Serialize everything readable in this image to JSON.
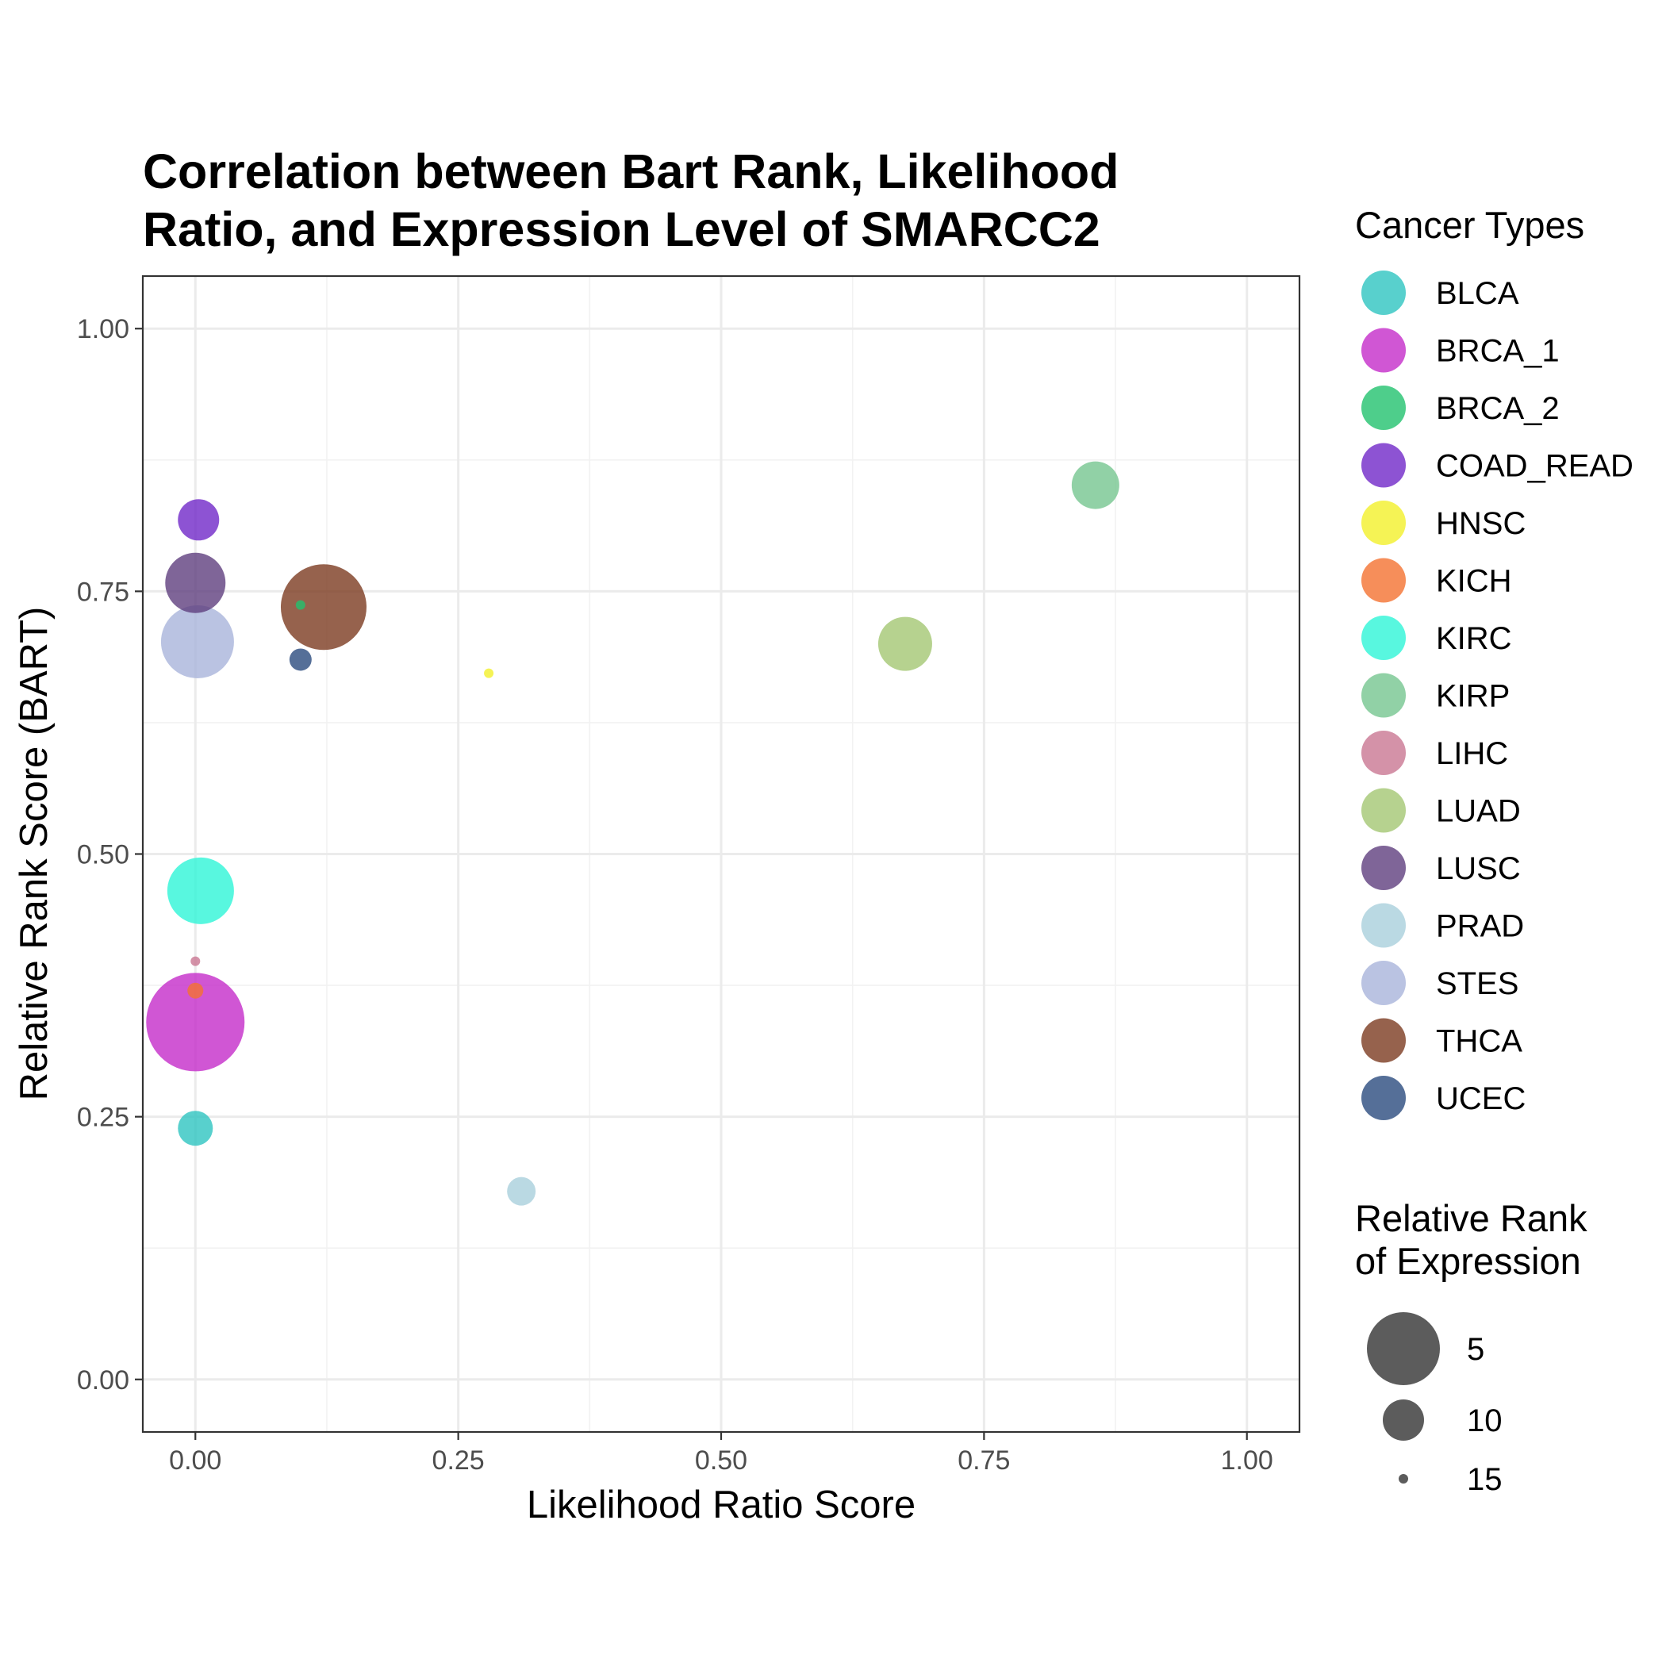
{
  "chart_data": {
    "type": "scatter",
    "title_lines": [
      "Correlation between Bart Rank, Likelihood",
      "Ratio, and Expression Level of SMARCC2"
    ],
    "xlabel": "Likelihood Ratio Score",
    "ylabel": "Relative Rank Score (BART)",
    "xlim": [
      -0.05,
      1.05
    ],
    "ylim": [
      -0.05,
      1.05
    ],
    "x_ticks": [
      0,
      0.25,
      0.5,
      0.75,
      1.0
    ],
    "x_tick_labels": [
      "0.00",
      "0.25",
      "0.50",
      "0.75",
      "1.00"
    ],
    "y_ticks": [
      0,
      0.25,
      0.5,
      0.75,
      1.0
    ],
    "y_tick_labels": [
      "0.00",
      "0.25",
      "0.50",
      "0.75",
      "1.00"
    ],
    "grid": true,
    "point_alpha": 0.8,
    "color_legend": {
      "title": "Cancer Types",
      "placement": "right",
      "entries": [
        {
          "name": "BLCA",
          "color": "#2ec4c0"
        },
        {
          "name": "BRCA_1",
          "color": "#c42cc9"
        },
        {
          "name": "BRCA_2",
          "color": "#22c26e"
        },
        {
          "name": "COAD_READ",
          "color": "#7028c8"
        },
        {
          "name": "HNSC",
          "color": "#f2f02a"
        },
        {
          "name": "KICH",
          "color": "#f47231"
        },
        {
          "name": "KIRC",
          "color": "#2ef5d7"
        },
        {
          "name": "KIRP",
          "color": "#76c690"
        },
        {
          "name": "LIHC",
          "color": "#c97792"
        },
        {
          "name": "LUAD",
          "color": "#a4c773"
        },
        {
          "name": "LUSC",
          "color": "#5f3f7e"
        },
        {
          "name": "PRAD",
          "color": "#a9d0dc"
        },
        {
          "name": "STES",
          "color": "#a9b4db"
        },
        {
          "name": "THCA",
          "color": "#7c3b21"
        },
        {
          "name": "UCEC",
          "color": "#2a4b7e"
        }
      ]
    },
    "size_legend": {
      "title_lines": [
        "Relative Rank",
        "of Expression"
      ],
      "placement": "right",
      "color": "#333333",
      "entries": [
        {
          "label": "5",
          "value": 5
        },
        {
          "label": "10",
          "value": 10
        },
        {
          "label": "15",
          "value": 15
        }
      ]
    },
    "points": [
      {
        "series": "BRCA_1",
        "x": 0.0,
        "y": 0.34,
        "size_value": 1
      },
      {
        "series": "THCA",
        "x": 0.122,
        "y": 0.735,
        "size_value": 3
      },
      {
        "series": "STES",
        "x": 0.002,
        "y": 0.702,
        "size_value": 5
      },
      {
        "series": "KIRC",
        "x": 0.005,
        "y": 0.465,
        "size_value": 6
      },
      {
        "series": "LUSC",
        "x": 0.0,
        "y": 0.758,
        "size_value": 7
      },
      {
        "series": "LUAD",
        "x": 0.675,
        "y": 0.7,
        "size_value": 8
      },
      {
        "series": "KIRP",
        "x": 0.856,
        "y": 0.851,
        "size_value": 9
      },
      {
        "series": "COAD_READ",
        "x": 0.003,
        "y": 0.818,
        "size_value": 10
      },
      {
        "series": "BLCA",
        "x": 0.0,
        "y": 0.239,
        "size_value": 11
      },
      {
        "series": "PRAD",
        "x": 0.31,
        "y": 0.179,
        "size_value": 12
      },
      {
        "series": "UCEC",
        "x": 0.1,
        "y": 0.685,
        "size_value": 13
      },
      {
        "series": "KICH",
        "x": 0.0,
        "y": 0.37,
        "size_value": 14
      },
      {
        "series": "BRCA_2",
        "x": 0.1,
        "y": 0.737,
        "size_value": 15
      },
      {
        "series": "HNSC",
        "x": 0.279,
        "y": 0.672,
        "size_value": 16
      },
      {
        "series": "LIHC",
        "x": 0.0,
        "y": 0.398,
        "size_value": 17
      }
    ]
  }
}
